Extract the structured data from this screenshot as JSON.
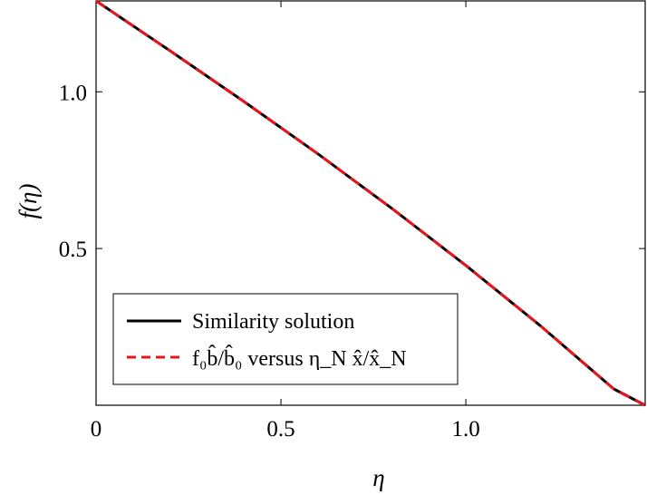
{
  "chart_data": {
    "type": "line",
    "xlabel": "η",
    "ylabel": "f(η)",
    "xlim": [
      0,
      1.485
    ],
    "ylim": [
      0,
      1.29
    ],
    "x_ticks": [
      0,
      0.5,
      1.0
    ],
    "x_tick_labels": [
      "0",
      "0.5",
      "1.0"
    ],
    "y_ticks": [
      0.5,
      1.0
    ],
    "y_tick_labels": [
      "0.5",
      "1.0"
    ],
    "grid": false,
    "legend_position": "bottom-left",
    "series": [
      {
        "name": "Similarity solution",
        "color": "#000000",
        "style": "solid",
        "x": [
          0,
          0.2,
          0.4,
          0.6,
          0.8,
          1.0,
          1.2,
          1.4,
          1.485
        ],
        "y": [
          1.29,
          1.131,
          0.969,
          0.802,
          0.628,
          0.446,
          0.255,
          0.052,
          0.0
        ]
      },
      {
        "name": "f₀b̂/b̂₀ versus η_N x̂/x̂_N",
        "color": "#e8151b",
        "style": "dashed",
        "x": [
          0,
          0.2,
          0.4,
          0.6,
          0.8,
          1.0,
          1.2,
          1.4,
          1.485
        ],
        "y": [
          1.29,
          1.131,
          0.969,
          0.802,
          0.628,
          0.446,
          0.255,
          0.052,
          0.0
        ]
      }
    ]
  }
}
